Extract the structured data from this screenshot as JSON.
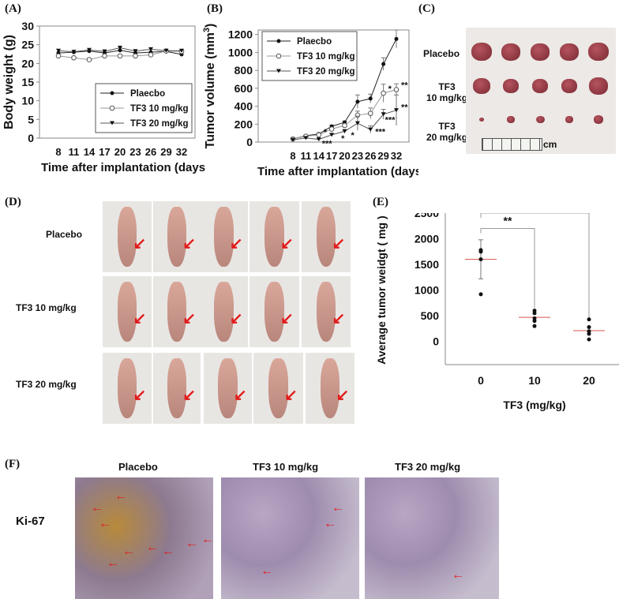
{
  "panels": {
    "A": "(A)",
    "B": "(B)",
    "C": "(C)",
    "D": "(D)",
    "E": "(E)",
    "F": "(F)"
  },
  "chart_data": [
    {
      "id": "A",
      "type": "line",
      "xlabel": "Time after implantation (days)",
      "ylabel": "Body weight (g)",
      "ylim": [
        0,
        30
      ],
      "yticks": [
        0,
        5,
        10,
        15,
        20,
        25,
        30
      ],
      "x": [
        8,
        11,
        14,
        17,
        20,
        23,
        26,
        29,
        32
      ],
      "legend": "bottom-right",
      "series": [
        {
          "name": "Plaecbo",
          "marker": "filled-circle",
          "values": [
            22.8,
            23.0,
            23.3,
            22.8,
            23.5,
            22.8,
            23.0,
            23.2,
            22.4
          ]
        },
        {
          "name": "TF3 10 mg/kg",
          "marker": "open-circle",
          "values": [
            22.0,
            21.5,
            21.0,
            22.0,
            22.0,
            22.0,
            22.3,
            23.3,
            23.2
          ]
        },
        {
          "name": "TF3 20 mg/kg",
          "marker": "triangle-down",
          "values": [
            23.4,
            23.1,
            23.6,
            23.2,
            24.2,
            23.3,
            23.8,
            23.4,
            23.4
          ]
        }
      ]
    },
    {
      "id": "B",
      "type": "line",
      "xlabel": "Time after implantation (days)",
      "ylabel": "Tumor volume (mm",
      "ylabel_sup": "3",
      "ylabel_end": ")",
      "ylim": [
        0,
        1250
      ],
      "yticks": [
        0,
        200,
        400,
        600,
        800,
        1000,
        1200
      ],
      "x": [
        8,
        11,
        14,
        17,
        20,
        23,
        26,
        29,
        32
      ],
      "legend": "top-left",
      "series": [
        {
          "name": "Plaecbo",
          "marker": "filled-circle",
          "values": [
            35,
            70,
            90,
            175,
            220,
            450,
            485,
            870,
            1150
          ],
          "err": [
            5,
            8,
            10,
            15,
            15,
            75,
            50,
            70,
            100
          ]
        },
        {
          "name": "TF3 10 mg/kg",
          "marker": "open-circle",
          "values": [
            35,
            65,
            80,
            145,
            185,
            300,
            320,
            545,
            585
          ],
          "err": [
            5,
            8,
            10,
            15,
            15,
            45,
            60,
            100,
            65
          ]
        },
        {
          "name": "TF3 20 mg/kg",
          "marker": "triangle-down",
          "values": [
            25,
            45,
            30,
            80,
            120,
            210,
            140,
            310,
            355
          ],
          "err": [
            5,
            8,
            8,
            15,
            20,
            80,
            40,
            55,
            170
          ]
        }
      ],
      "annotations": [
        {
          "x": 14,
          "y": 20,
          "text": "***"
        },
        {
          "x": 14,
          "y": 60,
          "text": "*"
        },
        {
          "x": 17,
          "y": 45,
          "text": "*"
        },
        {
          "x": 20,
          "y": 80,
          "text": "*"
        },
        {
          "x": 26,
          "y": 120,
          "text": "***"
        },
        {
          "x": 29,
          "y": 600,
          "text": "*"
        },
        {
          "x": 29,
          "y": 270,
          "text": "***"
        },
        {
          "x": 32,
          "y": 640,
          "text": "**"
        },
        {
          "x": 32,
          "y": 390,
          "text": "**"
        }
      ]
    },
    {
      "id": "E",
      "type": "scatter",
      "xlabel": "TF3 (mg/kg)",
      "ylabel": "Average tumor weidgt ( mg )",
      "ylim": [
        -450,
        2500
      ],
      "yticks": [
        0,
        500,
        1000,
        1500,
        2000,
        2500
      ],
      "categories": [
        "0",
        "10",
        "20"
      ],
      "points": [
        [
          1780,
          1750,
          1600,
          920
        ],
        [
          600,
          550,
          450,
          400,
          300
        ],
        [
          430,
          280,
          200,
          150,
          40
        ]
      ],
      "means": [
        1600,
        470,
        210
      ],
      "err": [
        380,
        0,
        0
      ],
      "brackets": [
        {
          "from": "0",
          "to": "10",
          "text": "**"
        },
        {
          "from": "0",
          "to": "20",
          "text": "**"
        }
      ],
      "mean_color": "#d9534f"
    }
  ],
  "C": {
    "rows": [
      "Placebo",
      "TF3\n10 mg/kg",
      "TF3\n20 mg/kg"
    ],
    "scale_label": "cm"
  },
  "D": {
    "rows": [
      "Placebo",
      "TF3 10 mg/kg",
      "TF3 20 mg/kg"
    ]
  },
  "F": {
    "columns": [
      "Placebo",
      "TF3 10 mg/kg",
      "TF3 20 mg/kg"
    ],
    "row_label": "Ki-67"
  }
}
